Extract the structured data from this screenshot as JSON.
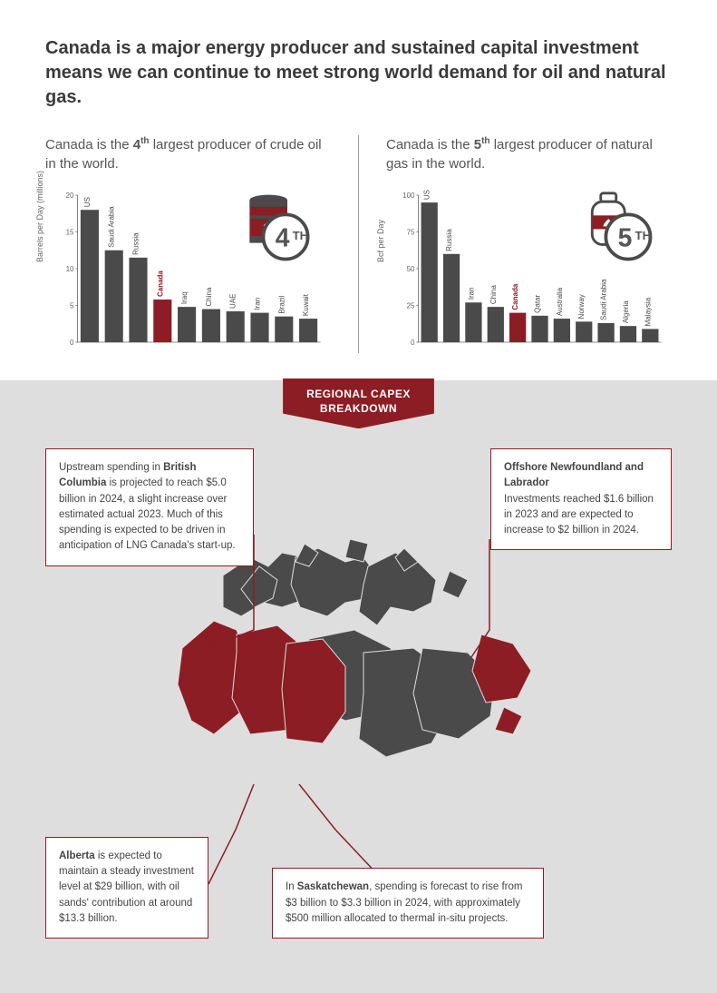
{
  "headline": "Canada is a major energy producer and sustained capital investment means we can continue to meet strong world demand for oil and natural gas.",
  "chart_oil": {
    "caption_pre": "Canada is the ",
    "rank_bold": "4",
    "rank_sup": "th",
    "caption_post": " largest producer of crude oil in the world.",
    "type": "bar",
    "ylabel": "Barrels per Day (millions)",
    "ylim": [
      0,
      20
    ],
    "ytick_step": 5,
    "categories": [
      "US",
      "Saudi Arabia",
      "Russia",
      "Canada",
      "Iraq",
      "China",
      "UAE",
      "Iran",
      "Brazil",
      "Kuwait"
    ],
    "values": [
      18,
      12.5,
      11.5,
      5.8,
      4.8,
      4.5,
      4.2,
      4.0,
      3.5,
      3.2
    ],
    "highlight_index": 3,
    "bar_color": "#4a4a4a",
    "highlight_color": "#8c1d24",
    "label_color": "#4a4a4a",
    "highlight_label_color": "#8c1d24",
    "label_fontsize": 8,
    "tick_fontsize": 8,
    "bar_width": 0.75,
    "rank_badge": {
      "number": "4",
      "suffix": "TH",
      "icon": "oil-barrel"
    }
  },
  "chart_gas": {
    "caption_pre": "Canada is the ",
    "rank_bold": "5",
    "rank_sup": "th",
    "caption_post": " largest producer of natural gas in the world.",
    "type": "bar",
    "ylabel": "Bcf per Day",
    "ylim": [
      0,
      100
    ],
    "ytick_step": 25,
    "categories": [
      "US",
      "Russia",
      "Iran",
      "China",
      "Canada",
      "Qatar",
      "Australia",
      "Norway",
      "Saudi Arabia",
      "Algeria",
      "Malaysia"
    ],
    "values": [
      95,
      60,
      27,
      24,
      20,
      18,
      16,
      14,
      13,
      11,
      9
    ],
    "highlight_index": 4,
    "bar_color": "#4a4a4a",
    "highlight_color": "#8c1d24",
    "label_color": "#4a4a4a",
    "highlight_label_color": "#8c1d24",
    "label_fontsize": 8,
    "tick_fontsize": 8,
    "bar_width": 0.75,
    "rank_badge": {
      "number": "5",
      "suffix": "TH",
      "icon": "gas-tank"
    }
  },
  "banner": {
    "line1": "REGIONAL CAPEX",
    "line2": "BREAKDOWN"
  },
  "callouts": {
    "bc": {
      "html": "Upstream spending in <b>British Columbia</b> is projected to reach $5.0 billion in 2024, a slight increase over estimated actual 2023. Much of this spending is expected to be driven in anticipation of LNG Canada's start-up."
    },
    "nl": {
      "html": "<b>Offshore Newfoundland and Labrador</b><br>Investments reached $1.6 billion in 2023 and are expected to increase to $2 billion in 2024."
    },
    "ab": {
      "html": "<b>Alberta</b> is expected to maintain a steady investment level at $29 billion, with oil sands' contribution at around $13.3 billion."
    },
    "sk": {
      "html": "In <b>Saskatchewan</b>, spending is forecast to rise from $3 billion to $3.3 billion in 2024, with approximately $500 million allocated to thermal in-situ projects."
    }
  },
  "map": {
    "base_color": "#4a4a4a",
    "highlight_color": "#8c1d24",
    "background": "#dedede",
    "highlighted_regions": [
      "BC",
      "AB",
      "SK",
      "NL"
    ]
  }
}
